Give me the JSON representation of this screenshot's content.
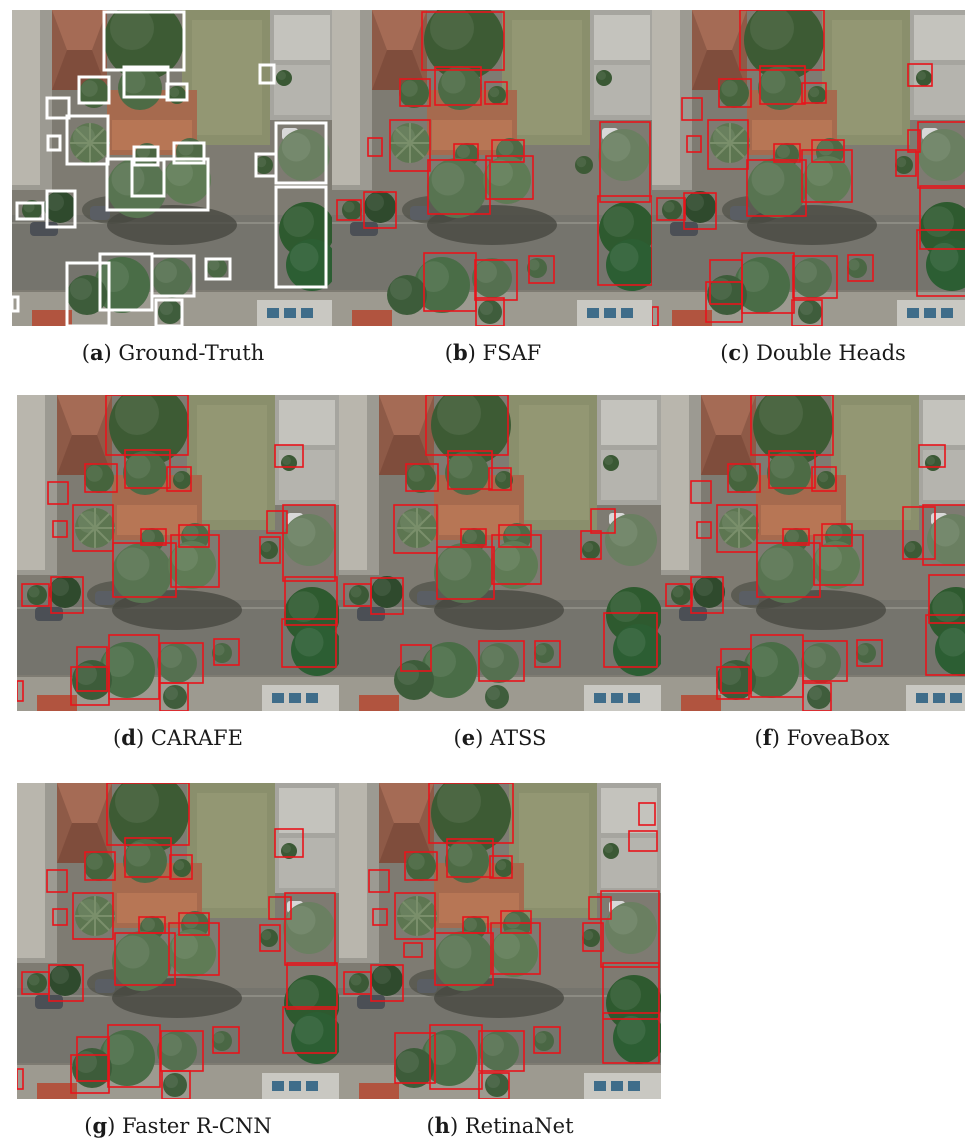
{
  "figure": {
    "panels": [
      {
        "key": "a",
        "letter": "a",
        "label": "Ground-Truth",
        "box_color": "#ffffff"
      },
      {
        "key": "b",
        "letter": "b",
        "label": "FSAF",
        "box_color": "#e8141b"
      },
      {
        "key": "c",
        "letter": "c",
        "label": "Double Heads",
        "box_color": "#e8141b"
      },
      {
        "key": "d",
        "letter": "d",
        "label": "CARAFE",
        "box_color": "#e8141b"
      },
      {
        "key": "e",
        "letter": "e",
        "label": "ATSS",
        "box_color": "#e8141b"
      },
      {
        "key": "f",
        "letter": "f",
        "label": "FoveaBox",
        "box_color": "#e8141b"
      },
      {
        "key": "g",
        "letter": "g",
        "label": "Faster R-CNN",
        "box_color": "#e8141b"
      },
      {
        "key": "h",
        "letter": "h",
        "label": "RetinaNet",
        "box_color": "#e8141b"
      }
    ]
  }
}
